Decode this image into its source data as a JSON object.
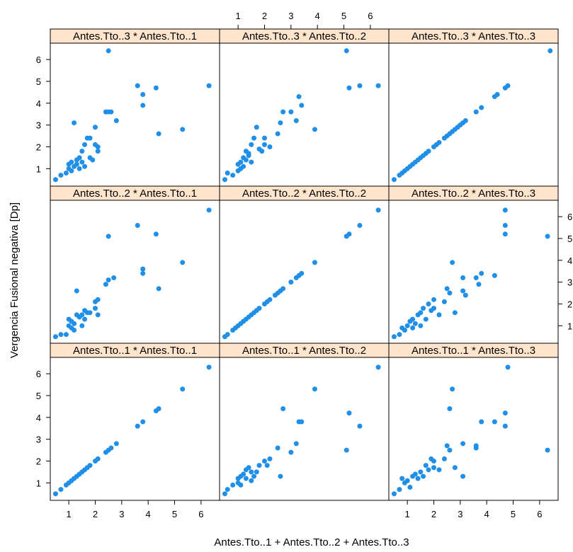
{
  "chart_data": {
    "type": "scatter",
    "xlabel": "Antes.Tto..1 + Antes.Tto..2 + Antes.Tto..3",
    "ylabel": "Vergencia Fusional negativa [Dp]",
    "xlim": [
      0.3,
      6.7
    ],
    "ylim": [
      0.2,
      6.75
    ],
    "x_ticks": [
      1,
      2,
      3,
      4,
      5,
      6
    ],
    "y_ticks": [
      1,
      2,
      3,
      4,
      5,
      6
    ],
    "grid": false,
    "legend": "none",
    "point_color": "#1f8fe8",
    "strip_color": "#ffe5cc",
    "panels": [
      {
        "label": "Antes.Tto..3 * Antes.Tto..1",
        "points": [
          [
            0.5,
            0.5
          ],
          [
            0.7,
            0.7
          ],
          [
            0.9,
            0.8
          ],
          [
            1.0,
            1.0
          ],
          [
            1.0,
            1.2
          ],
          [
            1.1,
            0.9
          ],
          [
            1.1,
            1.3
          ],
          [
            1.2,
            1.1
          ],
          [
            1.2,
            3.1
          ],
          [
            1.3,
            1.2
          ],
          [
            1.3,
            1.4
          ],
          [
            1.4,
            1.0
          ],
          [
            1.4,
            1.5
          ],
          [
            1.5,
            1.3
          ],
          [
            1.5,
            1.8
          ],
          [
            1.6,
            1.1
          ],
          [
            1.6,
            2.1
          ],
          [
            1.7,
            2.4
          ],
          [
            1.8,
            1.5
          ],
          [
            1.8,
            2.4
          ],
          [
            1.9,
            1.4
          ],
          [
            2.0,
            2.1
          ],
          [
            2.0,
            2.9
          ],
          [
            2.1,
            1.8
          ],
          [
            2.1,
            2.0
          ],
          [
            2.4,
            3.6
          ],
          [
            2.5,
            3.6
          ],
          [
            2.6,
            3.6
          ],
          [
            2.5,
            6.4
          ],
          [
            2.8,
            3.2
          ],
          [
            3.6,
            4.8
          ],
          [
            3.8,
            3.9
          ],
          [
            3.8,
            4.4
          ],
          [
            4.3,
            4.7
          ],
          [
            4.4,
            2.6
          ],
          [
            5.3,
            2.8
          ],
          [
            6.3,
            4.8
          ]
        ]
      },
      {
        "label": "Antes.Tto..3 * Antes.Tto..2",
        "points": [
          [
            0.5,
            0.5
          ],
          [
            0.6,
            0.8
          ],
          [
            0.8,
            0.7
          ],
          [
            1.0,
            0.9
          ],
          [
            1.0,
            1.2
          ],
          [
            1.1,
            1.0
          ],
          [
            1.1,
            1.3
          ],
          [
            1.2,
            1.1
          ],
          [
            1.2,
            1.5
          ],
          [
            1.3,
            1.4
          ],
          [
            1.3,
            1.8
          ],
          [
            1.4,
            1.6
          ],
          [
            1.4,
            1.7
          ],
          [
            1.5,
            1.3
          ],
          [
            1.5,
            2.1
          ],
          [
            1.6,
            2.4
          ],
          [
            1.7,
            2.9
          ],
          [
            1.8,
            1.9
          ],
          [
            1.9,
            1.8
          ],
          [
            2.0,
            2.4
          ],
          [
            2.0,
            2.1
          ],
          [
            2.2,
            2.0
          ],
          [
            2.5,
            2.6
          ],
          [
            2.6,
            3.1
          ],
          [
            2.7,
            3.6
          ],
          [
            3.0,
            3.6
          ],
          [
            3.2,
            3.2
          ],
          [
            3.3,
            4.3
          ],
          [
            3.4,
            3.9
          ],
          [
            3.9,
            2.8
          ],
          [
            5.1,
            6.4
          ],
          [
            5.2,
            4.7
          ],
          [
            5.6,
            4.8
          ],
          [
            6.3,
            4.8
          ]
        ]
      },
      {
        "label": "Antes.Tto..3 * Antes.Tto..3",
        "points": [
          [
            0.5,
            0.5
          ],
          [
            0.7,
            0.7
          ],
          [
            0.8,
            0.8
          ],
          [
            0.9,
            0.9
          ],
          [
            1.0,
            1.0
          ],
          [
            1.1,
            1.1
          ],
          [
            1.2,
            1.2
          ],
          [
            1.3,
            1.3
          ],
          [
            1.4,
            1.4
          ],
          [
            1.5,
            1.5
          ],
          [
            1.6,
            1.6
          ],
          [
            1.7,
            1.7
          ],
          [
            1.8,
            1.8
          ],
          [
            2.0,
            2.0
          ],
          [
            2.1,
            2.1
          ],
          [
            2.2,
            2.2
          ],
          [
            2.4,
            2.4
          ],
          [
            2.5,
            2.5
          ],
          [
            2.6,
            2.6
          ],
          [
            2.7,
            2.7
          ],
          [
            2.8,
            2.8
          ],
          [
            2.9,
            2.9
          ],
          [
            3.0,
            3.0
          ],
          [
            3.1,
            3.1
          ],
          [
            3.2,
            3.2
          ],
          [
            3.6,
            3.6
          ],
          [
            3.8,
            3.8
          ],
          [
            4.3,
            4.3
          ],
          [
            4.4,
            4.4
          ],
          [
            4.7,
            4.7
          ],
          [
            4.8,
            4.8
          ],
          [
            6.4,
            6.4
          ]
        ]
      },
      {
        "label": "Antes.Tto..2 * Antes.Tto..1",
        "points": [
          [
            0.5,
            0.5
          ],
          [
            0.7,
            0.6
          ],
          [
            0.9,
            0.6
          ],
          [
            1.0,
            1.0
          ],
          [
            1.0,
            1.3
          ],
          [
            1.1,
            0.9
          ],
          [
            1.1,
            1.2
          ],
          [
            1.2,
            0.8
          ],
          [
            1.2,
            1.1
          ],
          [
            1.3,
            1.5
          ],
          [
            1.3,
            2.6
          ],
          [
            1.4,
            1.4
          ],
          [
            1.5,
            1.0
          ],
          [
            1.5,
            1.5
          ],
          [
            1.6,
            1.3
          ],
          [
            1.6,
            1.7
          ],
          [
            1.7,
            1.6
          ],
          [
            1.8,
            1.6
          ],
          [
            2.0,
            1.8
          ],
          [
            2.0,
            2.1
          ],
          [
            2.1,
            2.2
          ],
          [
            2.1,
            1.5
          ],
          [
            2.4,
            2.9
          ],
          [
            2.5,
            3.1
          ],
          [
            2.5,
            5.1
          ],
          [
            2.7,
            3.2
          ],
          [
            3.6,
            5.6
          ],
          [
            3.8,
            3.4
          ],
          [
            3.8,
            3.6
          ],
          [
            4.3,
            5.2
          ],
          [
            4.4,
            2.7
          ],
          [
            5.3,
            3.9
          ],
          [
            6.3,
            6.3
          ]
        ]
      },
      {
        "label": "Antes.Tto..2 * Antes.Tto..2",
        "points": [
          [
            0.5,
            0.5
          ],
          [
            0.6,
            0.6
          ],
          [
            0.8,
            0.8
          ],
          [
            0.9,
            0.9
          ],
          [
            1.0,
            1.0
          ],
          [
            1.1,
            1.1
          ],
          [
            1.2,
            1.2
          ],
          [
            1.3,
            1.3
          ],
          [
            1.4,
            1.4
          ],
          [
            1.5,
            1.5
          ],
          [
            1.6,
            1.6
          ],
          [
            1.7,
            1.7
          ],
          [
            1.8,
            1.8
          ],
          [
            2.0,
            2.0
          ],
          [
            2.1,
            2.1
          ],
          [
            2.2,
            2.2
          ],
          [
            2.4,
            2.4
          ],
          [
            2.5,
            2.5
          ],
          [
            2.6,
            2.6
          ],
          [
            2.7,
            2.7
          ],
          [
            3.0,
            3.0
          ],
          [
            3.2,
            3.2
          ],
          [
            3.3,
            3.3
          ],
          [
            3.4,
            3.4
          ],
          [
            3.9,
            3.9
          ],
          [
            5.1,
            5.1
          ],
          [
            5.2,
            5.2
          ],
          [
            5.6,
            5.6
          ],
          [
            6.3,
            6.3
          ]
        ]
      },
      {
        "label": "Antes.Tto..2 * Antes.Tto..3",
        "points": [
          [
            0.5,
            0.5
          ],
          [
            0.7,
            0.6
          ],
          [
            0.8,
            0.9
          ],
          [
            0.9,
            0.8
          ],
          [
            1.0,
            1.0
          ],
          [
            1.1,
            1.2
          ],
          [
            1.2,
            0.9
          ],
          [
            1.2,
            1.3
          ],
          [
            1.3,
            1.1
          ],
          [
            1.4,
            1.5
          ],
          [
            1.5,
            1.6
          ],
          [
            1.5,
            1.0
          ],
          [
            1.6,
            1.8
          ],
          [
            1.7,
            1.3
          ],
          [
            1.8,
            2.0
          ],
          [
            1.9,
            1.7
          ],
          [
            2.0,
            2.2
          ],
          [
            2.0,
            1.8
          ],
          [
            2.2,
            1.5
          ],
          [
            2.4,
            2.1
          ],
          [
            2.5,
            2.7
          ],
          [
            2.6,
            2.5
          ],
          [
            2.7,
            3.9
          ],
          [
            2.8,
            1.6
          ],
          [
            3.1,
            3.2
          ],
          [
            3.1,
            2.6
          ],
          [
            3.2,
            2.4
          ],
          [
            3.6,
            3.2
          ],
          [
            3.7,
            2.9
          ],
          [
            3.8,
            3.4
          ],
          [
            4.3,
            3.3
          ],
          [
            4.7,
            5.2
          ],
          [
            4.7,
            5.6
          ],
          [
            4.7,
            6.3
          ],
          [
            6.3,
            5.1
          ]
        ]
      },
      {
        "label": "Antes.Tto..1 * Antes.Tto..1",
        "points": [
          [
            0.5,
            0.5
          ],
          [
            0.7,
            0.7
          ],
          [
            0.9,
            0.9
          ],
          [
            1.0,
            1.0
          ],
          [
            1.1,
            1.1
          ],
          [
            1.2,
            1.2
          ],
          [
            1.3,
            1.3
          ],
          [
            1.4,
            1.4
          ],
          [
            1.5,
            1.5
          ],
          [
            1.6,
            1.6
          ],
          [
            1.7,
            1.7
          ],
          [
            1.8,
            1.8
          ],
          [
            2.0,
            2.0
          ],
          [
            2.1,
            2.1
          ],
          [
            2.4,
            2.4
          ],
          [
            2.5,
            2.5
          ],
          [
            2.6,
            2.6
          ],
          [
            2.8,
            2.8
          ],
          [
            3.6,
            3.6
          ],
          [
            3.8,
            3.8
          ],
          [
            4.3,
            4.3
          ],
          [
            4.4,
            4.4
          ],
          [
            5.3,
            5.3
          ],
          [
            6.3,
            6.3
          ]
        ]
      },
      {
        "label": "Antes.Tto..1 * Antes.Tto..2",
        "points": [
          [
            0.5,
            0.5
          ],
          [
            0.6,
            0.7
          ],
          [
            0.8,
            0.9
          ],
          [
            1.0,
            1.0
          ],
          [
            1.0,
            1.2
          ],
          [
            1.1,
            0.9
          ],
          [
            1.1,
            1.3
          ],
          [
            1.2,
            1.4
          ],
          [
            1.3,
            1.6
          ],
          [
            1.3,
            1.2
          ],
          [
            1.4,
            1.7
          ],
          [
            1.5,
            1.5
          ],
          [
            1.5,
            1.1
          ],
          [
            1.6,
            1.3
          ],
          [
            1.7,
            1.5
          ],
          [
            1.8,
            1.8
          ],
          [
            2.0,
            2.0
          ],
          [
            2.1,
            1.8
          ],
          [
            2.2,
            2.1
          ],
          [
            2.5,
            2.6
          ],
          [
            2.6,
            1.3
          ],
          [
            2.7,
            4.4
          ],
          [
            3.0,
            2.4
          ],
          [
            3.2,
            2.8
          ],
          [
            3.3,
            3.8
          ],
          [
            3.4,
            3.8
          ],
          [
            3.9,
            5.3
          ],
          [
            5.1,
            2.5
          ],
          [
            5.2,
            4.2
          ],
          [
            5.6,
            3.6
          ],
          [
            6.3,
            6.3
          ]
        ]
      },
      {
        "label": "Antes.Tto..1 * Antes.Tto..3",
        "points": [
          [
            0.5,
            0.5
          ],
          [
            0.7,
            0.7
          ],
          [
            0.8,
            1.2
          ],
          [
            0.9,
            1.0
          ],
          [
            1.0,
            1.1
          ],
          [
            1.1,
            0.8
          ],
          [
            1.2,
            1.3
          ],
          [
            1.3,
            1.4
          ],
          [
            1.4,
            1.2
          ],
          [
            1.5,
            1.5
          ],
          [
            1.6,
            1.3
          ],
          [
            1.7,
            1.8
          ],
          [
            1.8,
            1.6
          ],
          [
            1.9,
            2.1
          ],
          [
            2.0,
            2.0
          ],
          [
            2.0,
            1.7
          ],
          [
            2.2,
            1.6
          ],
          [
            2.4,
            2.1
          ],
          [
            2.5,
            2.7
          ],
          [
            2.6,
            2.5
          ],
          [
            2.6,
            4.4
          ],
          [
            2.7,
            5.3
          ],
          [
            2.8,
            1.7
          ],
          [
            3.1,
            2.8
          ],
          [
            3.1,
            1.3
          ],
          [
            3.6,
            2.6
          ],
          [
            3.6,
            2.7
          ],
          [
            3.8,
            3.8
          ],
          [
            4.3,
            3.8
          ],
          [
            4.7,
            4.2
          ],
          [
            4.7,
            3.6
          ],
          [
            4.8,
            6.3
          ],
          [
            6.3,
            2.5
          ]
        ]
      }
    ]
  }
}
